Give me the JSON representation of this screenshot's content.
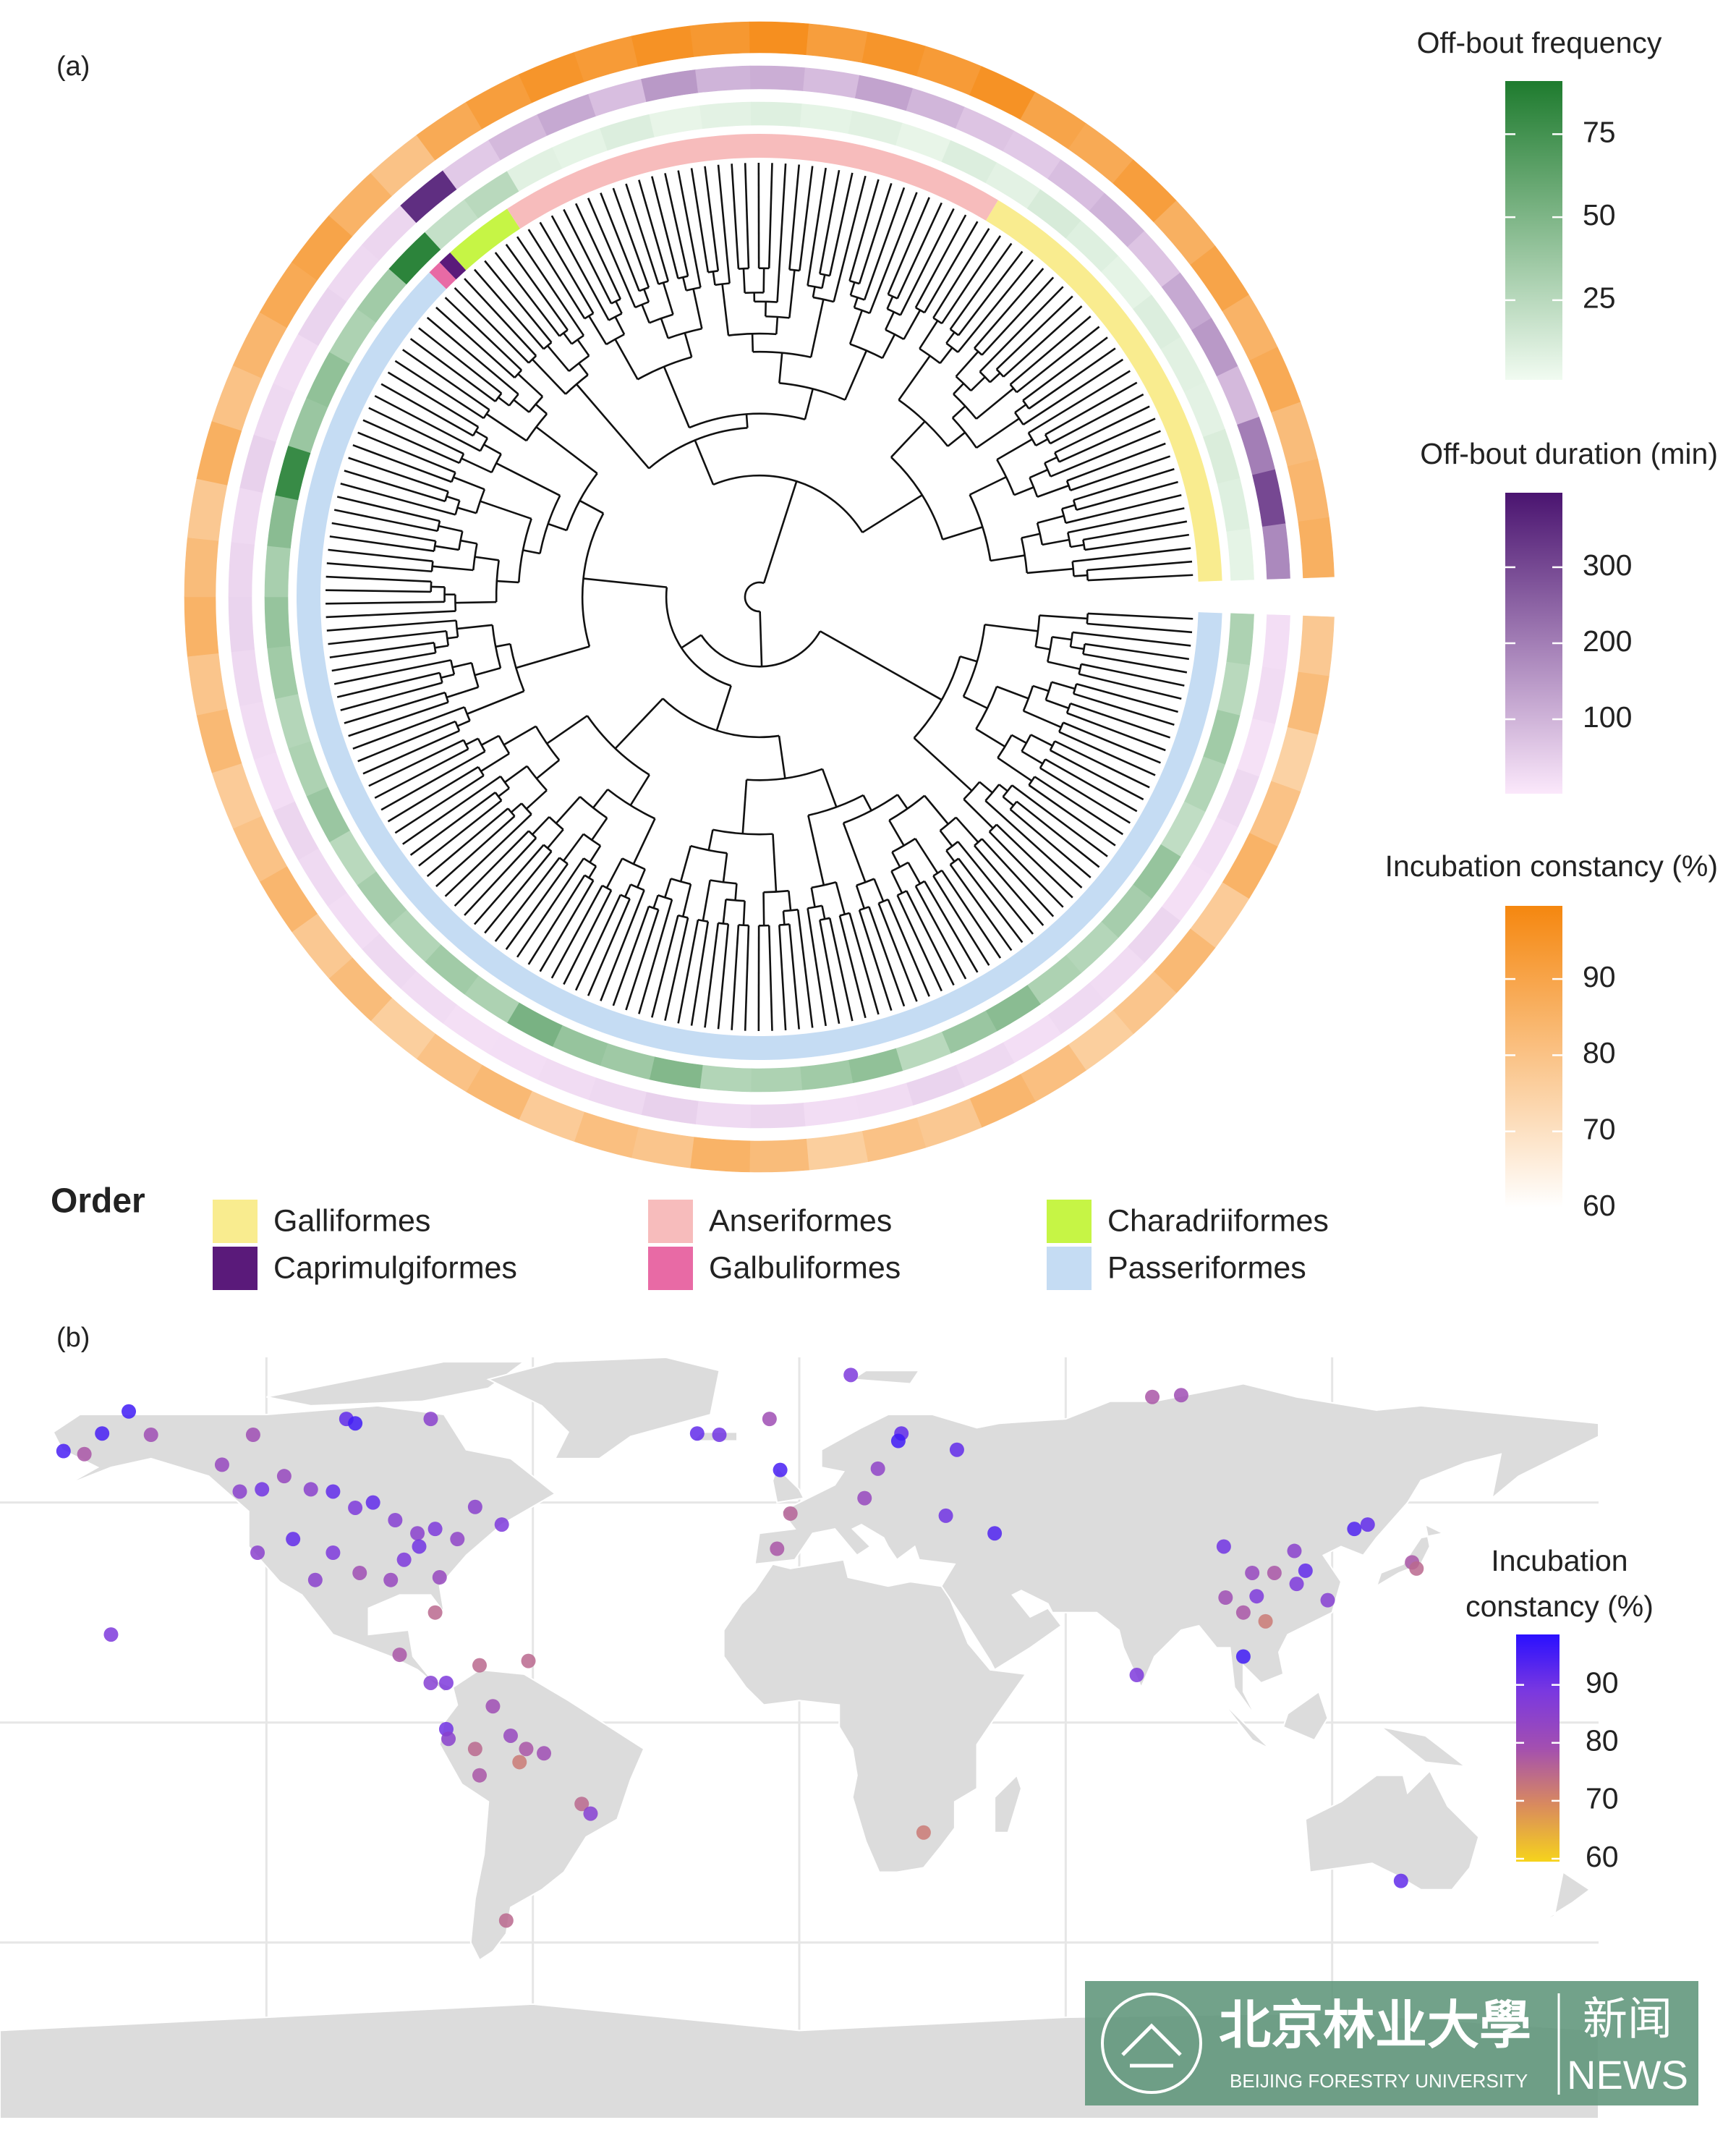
{
  "chart_data": [
    {
      "type": "circular-heatmap",
      "panel_label": "(a)",
      "orders": {
        "title": "Order",
        "categories": [
          "Passeriformes",
          "Galbuliformes",
          "Caprimulgiformes",
          "Charadriiformes",
          "Anseriformes",
          "Galliformes"
        ],
        "colors": [
          "#c5dcf3",
          "#e86aa5",
          "#5a1a7a",
          "#c6f545",
          "#f7bcbc",
          "#f9ec8f"
        ],
        "counts": [
          125,
          1,
          1,
          5,
          36,
          32
        ]
      },
      "rings": [
        {
          "name": "Off-bout frequency",
          "colors": [
            "#f1fbf1",
            "#1e7b2e"
          ],
          "lim": [
            1,
            91
          ],
          "ticks": [
            25,
            50,
            75
          ],
          "values": [
            30,
            25,
            35,
            28,
            22,
            40,
            33,
            27,
            30,
            45,
            38,
            25,
            42,
            35,
            30,
            28,
            48,
            36,
            40,
            52,
            30,
            35,
            28,
            33,
            25,
            38,
            30,
            27,
            35,
            40,
            32,
            45,
            80,
            38,
            42,
            30,
            35,
            85,
            20,
            25,
            8,
            6,
            10,
            5,
            7,
            9,
            6,
            8,
            5,
            10,
            7,
            12,
            9,
            6,
            10,
            8,
            7,
            11,
            9,
            6
          ]
        },
        {
          "name": "Off-bout duration (min)",
          "colors": [
            "#fbe8fb",
            "#4a1470"
          ],
          "lim": [
            2,
            398
          ],
          "ticks": [
            100,
            200,
            300
          ],
          "values": [
            20,
            25,
            15,
            30,
            22,
            18,
            35,
            25,
            28,
            20,
            30,
            40,
            25,
            22,
            35,
            28,
            45,
            30,
            25,
            20,
            18,
            25,
            30,
            22,
            28,
            35,
            20,
            25,
            30,
            40,
            35,
            28,
            45,
            30,
            25,
            40,
            30,
            35,
            350,
            60,
            90,
            120,
            80,
            150,
            100,
            110,
            85,
            130,
            95,
            70,
            60,
            80,
            100,
            70,
            120,
            150,
            90,
            200,
            300,
            180
          ]
        },
        {
          "name": "Incubation constancy (%)",
          "colors": [
            "#ffffff",
            "#f5870f"
          ],
          "lim": [
            60,
            99.6
          ],
          "ticks": [
            60,
            70,
            80,
            90
          ],
          "values": [
            78,
            82,
            75,
            80,
            85,
            77,
            83,
            79,
            76,
            81,
            84,
            78,
            80,
            76,
            82,
            85,
            79,
            81,
            77,
            83,
            80,
            76,
            82,
            78,
            84,
            80,
            77,
            83,
            79,
            85,
            82,
            78,
            86,
            80,
            84,
            88,
            90,
            85,
            80,
            88,
            92,
            95,
            93,
            96,
            94,
            97,
            92,
            95,
            93,
            96,
            90,
            88,
            92,
            86,
            90,
            85,
            88,
            82,
            84,
            86
          ]
        }
      ]
    },
    {
      "type": "map-scatter",
      "panel_label": "(b)",
      "xlim": [
        -180,
        180
      ],
      "ylim": [
        -90,
        83
      ],
      "points": {
        "lon": [
          -165.7,
          -161,
          -157,
          -151,
          -146,
          -155,
          -123,
          -102,
          -100,
          -83,
          -130,
          -116,
          -126,
          -121,
          -110,
          -105,
          -100,
          -96,
          -91,
          -86,
          -82,
          -77,
          -73,
          -67,
          -122,
          -114,
          -105,
          -109,
          -99,
          -92,
          -89,
          -85.6,
          -81,
          -82,
          -90,
          -83,
          -79.5,
          -72,
          -61,
          -69,
          -79.5,
          -79,
          -73,
          -65,
          -61.5,
          -57.5,
          -63,
          -72,
          -49,
          -47,
          -66,
          -23,
          -18,
          -6.7,
          11.6,
          -4.3,
          -2,
          -5,
          17.7,
          23,
          22.3,
          35.5,
          14.7,
          33,
          44,
          79.5,
          86,
          76,
          95.6,
          111.5,
          125,
          128,
          102,
          107,
          114,
          103,
          96,
          100,
          105,
          112,
          119,
          100,
          138,
          139,
          28,
          135.5
        ],
        "lat": [
          61.7,
          61,
          65.7,
          70.7,
          65.4,
          20,
          65.4,
          69,
          68,
          69,
          58.6,
          56,
          52.5,
          53,
          53,
          52.5,
          48.8,
          50,
          46,
          43,
          44,
          41.7,
          49,
          45,
          38.6,
          41.7,
          38.6,
          32.4,
          34,
          32.4,
          37,
          40,
          33,
          25,
          15.4,
          9,
          9,
          13,
          14,
          3.7,
          -1.5,
          -3.7,
          -6,
          -3,
          -6,
          -7,
          -9,
          -12,
          -18.5,
          -20.7,
          -45,
          65.7,
          65.4,
          69,
          79,
          57.4,
          47.5,
          39.5,
          57.7,
          65.7,
          64,
          62,
          51,
          47,
          43,
          74,
          74.4,
          10.8,
          40,
          39,
          44,
          45,
          34,
          34,
          34.5,
          28.7,
          28.4,
          25,
          23,
          31.5,
          27.8,
          15,
          36.4,
          35,
          -25,
          -36
        ],
        "values": [
          95,
          78,
          95,
          96,
          80,
          88,
          80,
          92,
          96,
          85,
          82,
          82,
          85,
          90,
          85,
          92,
          88,
          92,
          86,
          85,
          88,
          84,
          85,
          88,
          85,
          92,
          88,
          85,
          80,
          82,
          88,
          90,
          82,
          75,
          78,
          86,
          88,
          75,
          75,
          80,
          90,
          85,
          75,
          82,
          78,
          80,
          72,
          78,
          75,
          86,
          75,
          92,
          90,
          80,
          88,
          95,
          76,
          78,
          84,
          92,
          96,
          92,
          82,
          90,
          94,
          78,
          80,
          88,
          90,
          85,
          94,
          92,
          82,
          78,
          92,
          88,
          80,
          78,
          72,
          88,
          86,
          96,
          78,
          75,
          72,
          92
        ]
      },
      "colorbar": {
        "title_lines": [
          "Incubation",
          "constancy (%)"
        ],
        "lim": [
          59.5,
          98.7
        ],
        "ticks": [
          60,
          70,
          80,
          90
        ],
        "colors": [
          "#f6d31c",
          "#d98a5e",
          "#a34fb0",
          "#7a38e0",
          "#2a10ff"
        ]
      }
    }
  ],
  "watermark": {
    "chinese": "北京林业大學",
    "english": "BEIJING FORESTRY UNIVERSITY",
    "news_cn": "新闻",
    "news_en": "NEWS"
  }
}
